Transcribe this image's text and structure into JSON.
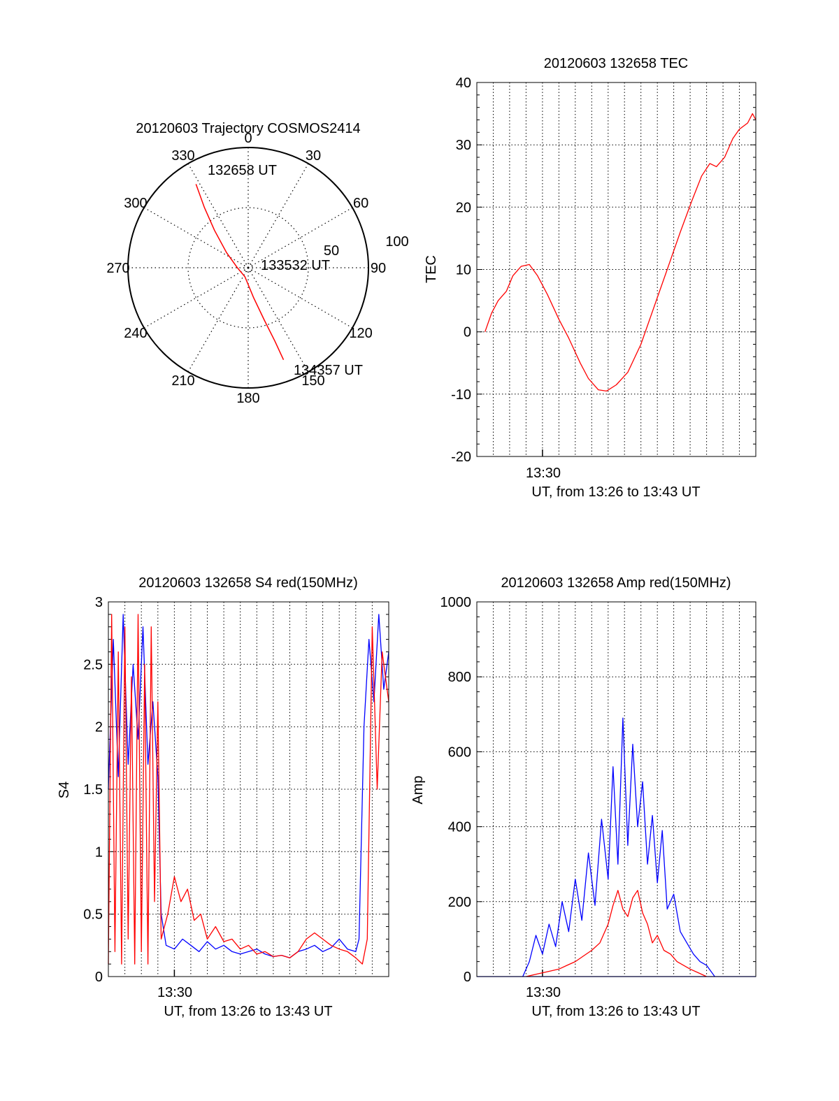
{
  "chart_data": [
    {
      "type": "polar",
      "title": "20120603 Trajectory COSMOS2414",
      "azimuth_labels": [
        "0",
        "30",
        "60",
        "90",
        "120",
        "150",
        "180",
        "210",
        "240",
        "270",
        "300",
        "330"
      ],
      "radial_labels": [
        "50",
        "100"
      ],
      "rlim": [
        0,
        100
      ],
      "grid": true,
      "series": [
        {
          "color": "#ff0000",
          "points": [
            {
              "az": 328,
              "r": 82
            },
            {
              "az": 324,
              "r": 62
            },
            {
              "az": 318,
              "r": 42
            },
            {
              "az": 305,
              "r": 22
            },
            {
              "az": 270,
              "r": 9
            },
            {
              "az": 200,
              "r": 8
            },
            {
              "az": 170,
              "r": 25
            },
            {
              "az": 163,
              "r": 45
            },
            {
              "az": 160,
              "r": 65
            },
            {
              "az": 159,
              "r": 82
            }
          ]
        }
      ],
      "annotations": [
        {
          "text": "132658 UT",
          "az": 340,
          "r": 84
        },
        {
          "text": "133532 UT",
          "az": 73,
          "r": 28
        },
        {
          "text": "134357 UT",
          "az": 150,
          "r": 100
        }
      ]
    },
    {
      "type": "line",
      "title": "20120603 132658 TEC",
      "xlabel": "UT, from 13:26 to 13:43 UT",
      "ylabel": "TEC",
      "xticks": [
        "13:30"
      ],
      "yticks": [
        "40",
        "30",
        "20",
        "10",
        "0",
        "-10",
        "-20"
      ],
      "xlim": [
        0,
        17
      ],
      "ylim": [
        -20,
        40
      ],
      "grid": true,
      "series": [
        {
          "color": "#ff0000",
          "x": [
            0.5,
            0.9,
            1.3,
            1.8,
            2.2,
            2.7,
            3.2,
            3.7,
            4.3,
            5.0,
            5.6,
            6.3,
            6.8,
            7.4,
            7.9,
            8.5,
            9.2,
            10.0,
            10.8,
            11.6,
            12.4,
            13.1,
            13.7,
            14.2,
            14.6,
            15.1,
            15.6,
            16.0,
            16.5,
            16.8,
            17.0
          ],
          "y": [
            0.0,
            3.0,
            5.0,
            6.5,
            9.0,
            10.5,
            10.8,
            9.0,
            6.0,
            2.0,
            -1.0,
            -5.0,
            -7.5,
            -9.3,
            -9.5,
            -8.5,
            -6.5,
            -2.0,
            4.0,
            10.0,
            16.0,
            21.0,
            25.0,
            27.0,
            26.5,
            28.0,
            31.0,
            32.5,
            33.5,
            35.0,
            34.0
          ]
        }
      ]
    },
    {
      "type": "line",
      "title": "20120603 132658 S4 red(150MHz)",
      "xlabel": "UT, from 13:26 to 13:43 UT",
      "ylabel": "S4",
      "xticks": [
        "13:30"
      ],
      "yticks": [
        "3",
        "2.5",
        "2",
        "1.5",
        "1",
        "0.5",
        "0"
      ],
      "xlim": [
        0,
        17
      ],
      "ylim": [
        0,
        3
      ],
      "grid": true,
      "series": [
        {
          "color": "#0000ff",
          "x": [
            0.0,
            0.3,
            0.6,
            0.9,
            1.2,
            1.5,
            1.8,
            2.1,
            2.4,
            2.7,
            3.0,
            3.2,
            3.5,
            4.0,
            4.5,
            5.0,
            5.5,
            6.0,
            6.5,
            7.0,
            7.5,
            8.0,
            8.5,
            9.0,
            9.5,
            10.0,
            10.5,
            11.0,
            11.5,
            12.0,
            12.5,
            13.0,
            13.5,
            14.0,
            14.5,
            15.0,
            15.2,
            15.5,
            15.8,
            16.1,
            16.4,
            16.7,
            17.0
          ],
          "y": [
            1.5,
            2.7,
            1.6,
            2.9,
            1.7,
            2.5,
            1.9,
            2.8,
            1.7,
            2.2,
            1.6,
            0.5,
            0.25,
            0.22,
            0.3,
            0.25,
            0.2,
            0.28,
            0.22,
            0.25,
            0.2,
            0.18,
            0.2,
            0.22,
            0.18,
            0.16,
            0.17,
            0.15,
            0.2,
            0.22,
            0.25,
            0.2,
            0.23,
            0.3,
            0.22,
            0.2,
            0.3,
            2.0,
            2.7,
            2.2,
            2.9,
            2.3,
            2.6
          ]
        },
        {
          "color": "#ff0000",
          "x": [
            0.0,
            0.2,
            0.4,
            0.6,
            0.8,
            1.0,
            1.2,
            1.4,
            1.6,
            1.8,
            2.0,
            2.2,
            2.4,
            2.6,
            2.8,
            3.0,
            3.2,
            3.6,
            4.0,
            4.4,
            4.8,
            5.2,
            5.6,
            6.0,
            6.5,
            7.0,
            7.5,
            8.0,
            8.5,
            9.0,
            9.5,
            10.0,
            10.5,
            11.0,
            11.5,
            12.0,
            12.5,
            13.0,
            13.5,
            14.0,
            14.5,
            15.0,
            15.4,
            15.7,
            16.0,
            16.3,
            16.6,
            17.0
          ],
          "y": [
            0.1,
            2.9,
            0.2,
            2.6,
            0.1,
            2.8,
            0.3,
            2.4,
            0.1,
            2.9,
            0.2,
            2.5,
            0.1,
            2.8,
            0.6,
            2.2,
            0.3,
            0.5,
            0.8,
            0.6,
            0.7,
            0.45,
            0.5,
            0.3,
            0.4,
            0.28,
            0.3,
            0.22,
            0.25,
            0.18,
            0.2,
            0.16,
            0.17,
            0.15,
            0.2,
            0.3,
            0.35,
            0.3,
            0.25,
            0.22,
            0.2,
            0.15,
            0.1,
            0.3,
            2.8,
            1.5,
            2.6,
            2.2
          ]
        }
      ]
    },
    {
      "type": "line",
      "title": "20120603 132658 Amp red(150MHz)",
      "xlabel": "UT, from 13:26 to 13:43 UT",
      "ylabel": "Amp",
      "xticks": [
        "13:30"
      ],
      "yticks": [
        "1000",
        "800",
        "600",
        "400",
        "200",
        "0"
      ],
      "xlim": [
        0,
        17
      ],
      "ylim": [
        0,
        1000
      ],
      "grid": true,
      "series": [
        {
          "color": "#0000ff",
          "x": [
            0.0,
            0.5,
            1.0,
            1.5,
            2.0,
            2.5,
            3.0,
            3.5,
            4.0,
            4.5,
            5.0,
            5.5,
            6.0,
            6.5,
            7.0,
            7.5,
            8.0,
            8.5,
            9.0,
            9.5,
            10.0,
            10.5,
            11.0,
            11.5,
            12.0,
            12.5,
            13.0,
            13.5,
            14.0,
            14.5,
            15.0,
            15.5,
            16.0,
            16.5,
            17.0
          ],
          "y": [
            0,
            0,
            0,
            0,
            0,
            0,
            0,
            0,
            0,
            0,
            0,
            0,
            0,
            0,
            0,
            0,
            0,
            0,
            0,
            0,
            0,
            0,
            0,
            0,
            0,
            0,
            0,
            0,
            0,
            0,
            0,
            0,
            0,
            0,
            0
          ]
        },
        {
          "color": "#0000ff",
          "x": [
            2.8,
            3.2,
            3.6,
            4.0,
            4.4,
            4.8,
            5.2,
            5.6,
            6.0,
            6.4,
            6.8,
            7.2,
            7.6,
            8.0,
            8.3,
            8.6,
            8.9,
            9.2,
            9.5,
            9.8,
            10.1,
            10.4,
            10.7,
            11.0,
            11.3,
            11.6,
            12.0,
            12.4,
            12.8,
            13.2,
            13.6,
            14.0,
            14.5
          ],
          "y": [
            0,
            40,
            110,
            60,
            140,
            80,
            200,
            120,
            260,
            150,
            330,
            190,
            420,
            260,
            560,
            300,
            690,
            350,
            620,
            400,
            520,
            300,
            430,
            250,
            390,
            180,
            220,
            120,
            90,
            60,
            40,
            30,
            0
          ]
        },
        {
          "color": "#ff0000",
          "x": [
            3.0,
            3.5,
            4.0,
            4.5,
            5.0,
            5.5,
            6.0,
            6.5,
            7.0,
            7.5,
            8.0,
            8.3,
            8.6,
            8.9,
            9.2,
            9.5,
            9.8,
            10.1,
            10.4,
            10.7,
            11.0,
            11.4,
            11.8,
            12.2,
            12.6,
            13.0,
            13.5,
            14.0
          ],
          "y": [
            0,
            5,
            10,
            15,
            20,
            30,
            40,
            55,
            70,
            90,
            140,
            190,
            230,
            180,
            160,
            210,
            230,
            170,
            140,
            90,
            110,
            70,
            60,
            40,
            30,
            20,
            10,
            0
          ]
        }
      ]
    }
  ]
}
